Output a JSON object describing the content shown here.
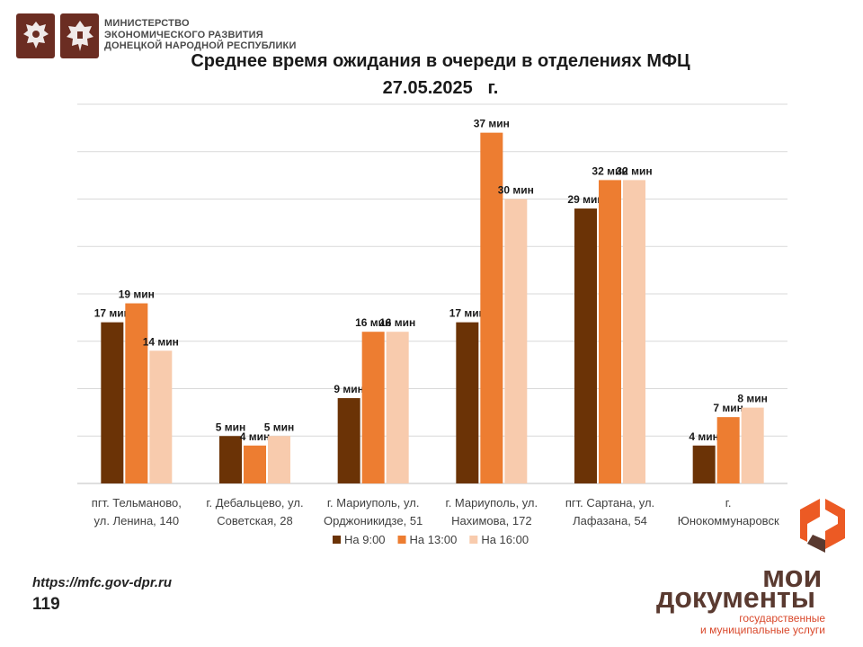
{
  "header": {
    "ministry_lines": [
      "МИНИСТЕРСТВО",
      "ЭКОНОМИЧЕСКОГО РАЗВИТИЯ",
      "ДОНЕЦКОЙ НАРОДНОЙ РЕСПУБЛИКИ"
    ],
    "emblems": [
      "coat-of-arms-icon",
      "coat-of-arms-icon"
    ]
  },
  "chart_data": {
    "type": "bar",
    "title": "Среднее время ожидания в очереди в отделениях МФЦ",
    "subtitle": "27.05.2025   г.",
    "categories": [
      [
        "пгт. Тельманово,",
        "ул. Ленина, 140"
      ],
      [
        "г. Дебальцево, ул.",
        "Советская, 28"
      ],
      [
        "г. Мариуполь, ул.",
        "Орджоникидзе, 51"
      ],
      [
        "г. Мариуполь, ул.",
        "Нахимова, 172"
      ],
      [
        "пгт. Сартана, ул.",
        "Лафазана, 54"
      ],
      [
        "г.",
        "Юнокоммунаровск"
      ]
    ],
    "series": [
      {
        "name": "На 9:00",
        "color": "#6b3306",
        "values": [
          17,
          5,
          9,
          17,
          29,
          4
        ],
        "labels": [
          "17 мин",
          "5 мин",
          "9 мин",
          "17 мин",
          "29 мин",
          "4 мин"
        ]
      },
      {
        "name": "На 13:00",
        "color": "#ed7d31",
        "values": [
          19,
          4,
          16,
          37,
          32,
          7
        ],
        "labels": [
          "19 мин",
          "4 мин",
          "16  мин",
          "37 мин",
          "32 мин",
          "7 мин"
        ]
      },
      {
        "name": "На 16:00",
        "color": "#f8cbad",
        "values": [
          14,
          5,
          16,
          30,
          32,
          8
        ],
        "labels": [
          "14 мин",
          "5 мин",
          "16 мин",
          "30 мин",
          "32 мин",
          "8 мин"
        ]
      }
    ],
    "ylim": [
      0,
      40
    ],
    "grid": true,
    "legend_position": "bottom"
  },
  "footer": {
    "url": "https://mfc.gov-dpr.ru",
    "page_number": "119",
    "brand_top": "мои",
    "brand_main": "документы",
    "brand_sub_lines": [
      "государственные",
      "и муниципальные услуги"
    ]
  }
}
